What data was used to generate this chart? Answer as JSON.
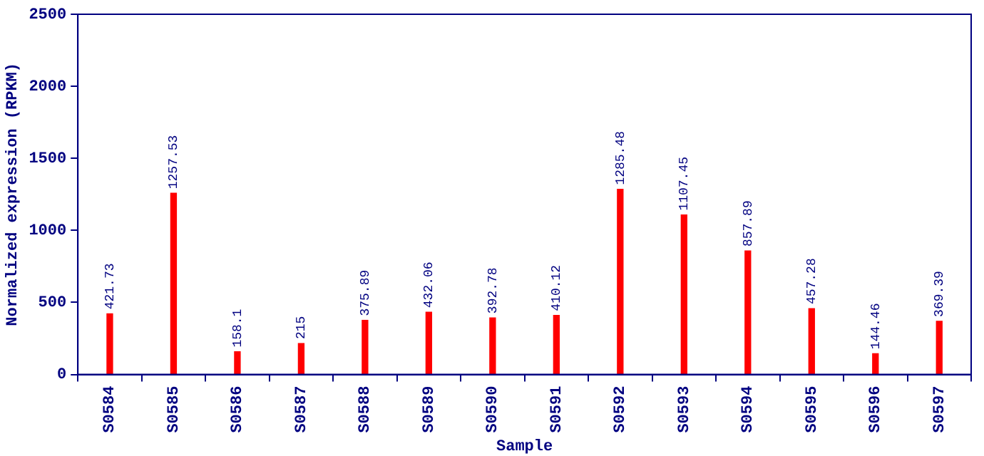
{
  "chart_data": {
    "type": "bar",
    "xlabel": "Sample",
    "ylabel": "Normalized expression (RPKM)",
    "categories": [
      "S0584",
      "S0585",
      "S0586",
      "S0587",
      "S0588",
      "S0589",
      "S0590",
      "S0591",
      "S0592",
      "S0593",
      "S0594",
      "S0595",
      "S0596",
      "S0597"
    ],
    "values": [
      421.73,
      1257.53,
      158.1,
      215,
      375.89,
      432.06,
      392.78,
      410.12,
      1285.48,
      1107.45,
      857.89,
      457.28,
      144.46,
      369.39
    ],
    "color": "#ff0000",
    "ylim": [
      0,
      2500
    ],
    "yticks": [
      0,
      500,
      1000,
      1500,
      2000,
      2500
    ],
    "data_labels": true,
    "grid": false,
    "legend": false
  }
}
